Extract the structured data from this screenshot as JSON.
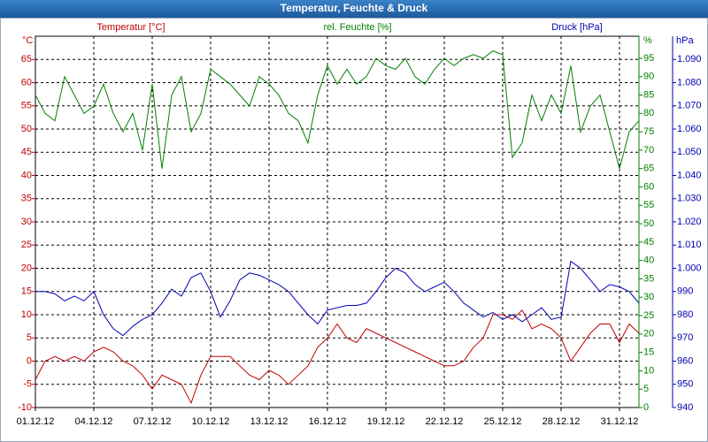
{
  "chart_data": {
    "type": "line",
    "title": "Temperatur, Feuchte & Druck",
    "x": [
      1,
      1.5,
      2,
      2.5,
      3,
      3.5,
      4,
      4.5,
      5,
      5.5,
      6,
      6.5,
      7,
      7.5,
      8,
      8.5,
      9,
      9.5,
      10,
      10.5,
      11,
      11.5,
      12,
      12.5,
      13,
      13.5,
      14,
      14.5,
      15,
      15.5,
      16,
      16.5,
      17,
      17.5,
      18,
      18.5,
      19,
      19.5,
      20,
      20.5,
      21,
      21.5,
      22,
      22.5,
      23,
      23.5,
      24,
      24.5,
      25,
      25.5,
      26,
      26.5,
      27,
      27.5,
      28,
      28.5,
      29,
      29.5,
      30,
      30.5,
      31,
      31.5,
      32
    ],
    "xlim": [
      1,
      32
    ],
    "xticks": [
      {
        "value": 1,
        "label": "01.12.12"
      },
      {
        "value": 4,
        "label": "04.12.12"
      },
      {
        "value": 7,
        "label": "07.12.12"
      },
      {
        "value": 10,
        "label": "10.12.12"
      },
      {
        "value": 13,
        "label": "13.12.12"
      },
      {
        "value": 16,
        "label": "16.12.12"
      },
      {
        "value": 19,
        "label": "19.12.12"
      },
      {
        "value": 22,
        "label": "22.12.12"
      },
      {
        "value": 25,
        "label": "25.12.12"
      },
      {
        "value": 28,
        "label": "28.12.12"
      },
      {
        "value": 31,
        "label": "31.12.12"
      }
    ],
    "y_label": "°C",
    "ylim": [
      -10,
      70
    ],
    "yticks": [
      -10,
      -5,
      0,
      5,
      10,
      15,
      20,
      25,
      30,
      35,
      40,
      45,
      50,
      55,
      60,
      65
    ],
    "y2_label": "%",
    "y2lim": [
      0,
      101
    ],
    "y2ticks": [
      0,
      5,
      10,
      15,
      20,
      25,
      30,
      35,
      40,
      45,
      50,
      55,
      60,
      65,
      70,
      75,
      80,
      85,
      90,
      95
    ],
    "y3_label": "hPa",
    "y3lim": [
      940,
      1100
    ],
    "y3ticks": [
      940,
      950,
      960,
      970,
      980,
      990,
      {
        "value": 1000,
        "label": "1.000"
      },
      {
        "value": 1010,
        "label": "1.010"
      },
      {
        "value": 1020,
        "label": "1.020"
      },
      {
        "value": 1030,
        "label": "1.030"
      },
      {
        "value": 1040,
        "label": "1.040"
      },
      {
        "value": 1050,
        "label": "1.050"
      },
      {
        "value": 1060,
        "label": "1.060"
      },
      {
        "value": 1070,
        "label": "1.070"
      },
      {
        "value": 1080,
        "label": "1.080"
      },
      {
        "value": 1090,
        "label": "1.090"
      }
    ],
    "grid": true,
    "series": [
      {
        "name": "Temperatur [°C]",
        "color": "#c00000",
        "axis": "y",
        "values": [
          -4,
          0,
          1,
          0,
          1,
          0,
          2,
          3,
          2,
          0,
          -1,
          -3,
          -6,
          -3,
          -4,
          -5,
          -9,
          -3,
          1,
          1,
          1,
          -1,
          -3,
          -4,
          -2,
          -3,
          -5,
          -3,
          -1,
          3,
          5,
          8,
          5,
          4,
          7,
          6,
          5,
          4,
          3,
          2,
          1,
          0,
          -1,
          -1,
          0,
          3,
          5,
          10,
          10,
          9,
          11,
          7,
          8,
          7,
          5,
          0,
          3,
          6,
          8,
          8,
          4,
          8,
          6
        ]
      },
      {
        "name": "rel. Feuchte [%]",
        "color": "#008000",
        "axis": "y2",
        "values": [
          85,
          80,
          78,
          90,
          85,
          80,
          82,
          88,
          80,
          75,
          80,
          70,
          88,
          65,
          85,
          90,
          75,
          80,
          92,
          90,
          88,
          85,
          82,
          90,
          88,
          85,
          80,
          78,
          72,
          85,
          93,
          88,
          92,
          88,
          90,
          95,
          93,
          92,
          95,
          90,
          88,
          92,
          95,
          93,
          95,
          96,
          95,
          97,
          96,
          68,
          72,
          85,
          78,
          85,
          80,
          93,
          75,
          82,
          85,
          75,
          65,
          75,
          78
        ]
      },
      {
        "name": "Druck [hPa]",
        "color": "#0000b0",
        "axis": "y3",
        "values": [
          990,
          990,
          989,
          986,
          988,
          986,
          990,
          980,
          974,
          971,
          975,
          978,
          980,
          985,
          991,
          988,
          996,
          998,
          990,
          979,
          986,
          995,
          998,
          997,
          995,
          993,
          990,
          985,
          980,
          976,
          982,
          983,
          984,
          984,
          985,
          990,
          996,
          1000,
          998,
          993,
          990,
          992,
          994,
          990,
          985,
          982,
          979,
          981,
          978,
          980,
          977,
          980,
          983,
          978,
          979,
          1003,
          1000,
          995,
          990,
          993,
          992,
          990,
          985
        ]
      }
    ]
  }
}
